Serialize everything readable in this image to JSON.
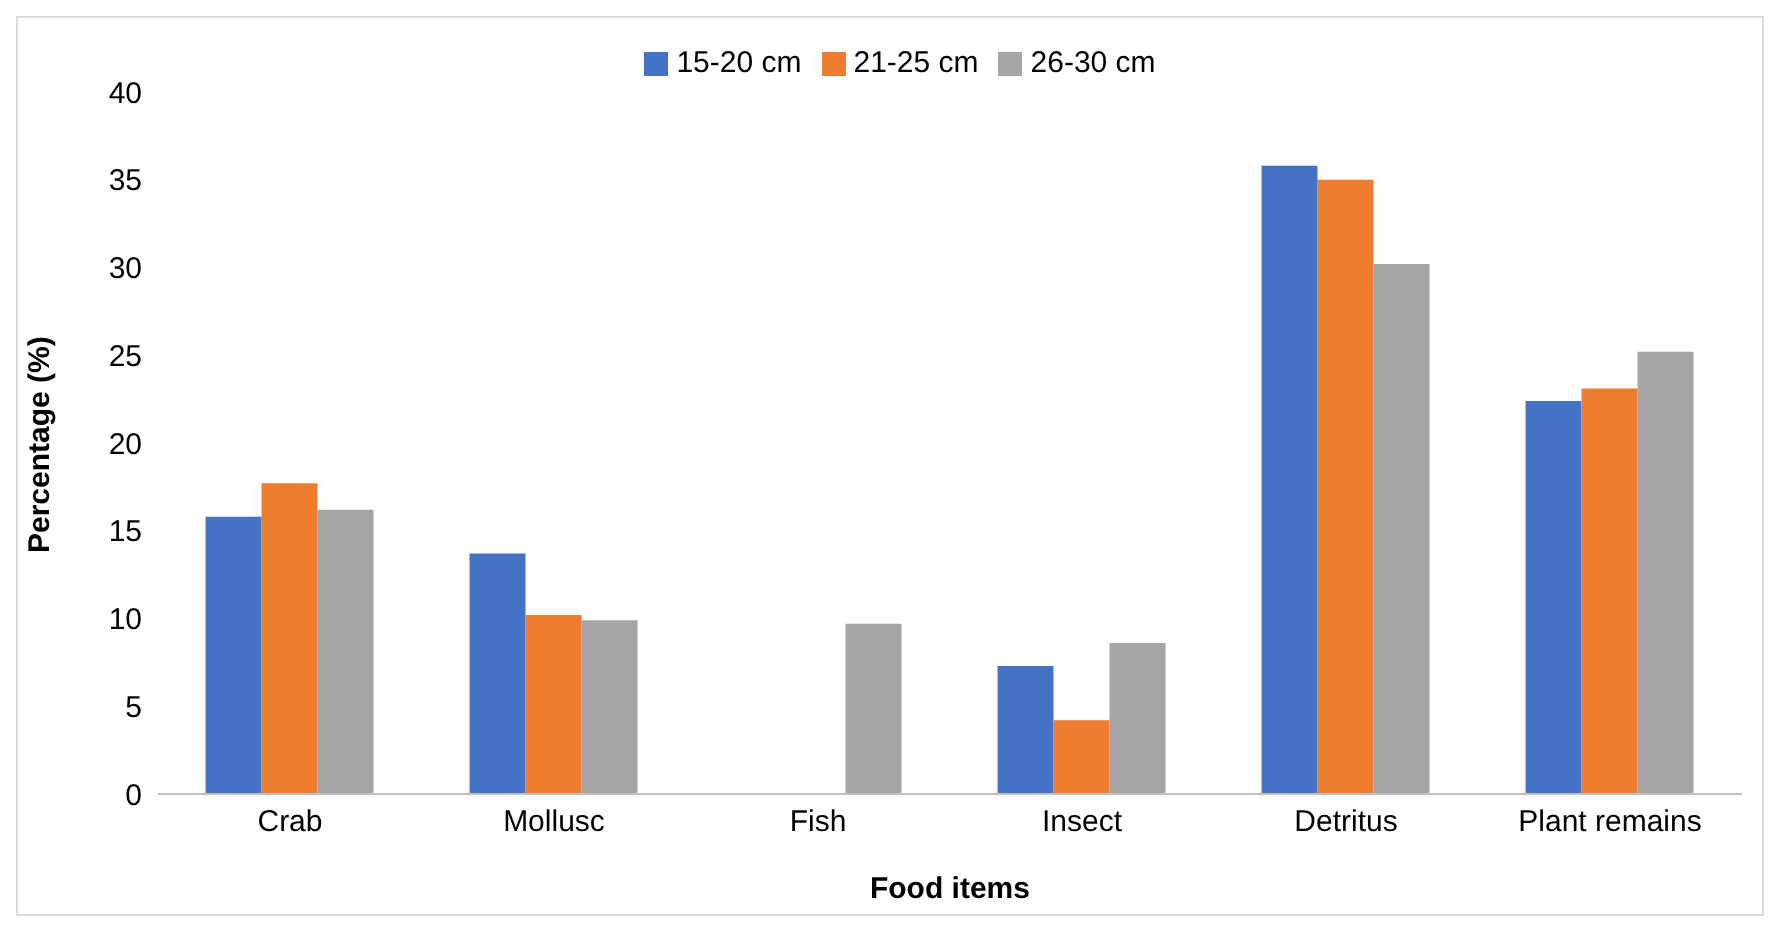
{
  "chart_data": {
    "type": "bar",
    "xlabel": "Food items",
    "ylabel": "Percentage (%)",
    "categories": [
      "Crab",
      "Mollusc",
      "Fish",
      "Insect",
      "Detritus",
      "Plant remains"
    ],
    "series": [
      {
        "name": "15-20 cm",
        "color": "#4472c4",
        "values": [
          15.8,
          13.7,
          0,
          7.3,
          35.8,
          22.4
        ]
      },
      {
        "name": "21-25 cm",
        "color": "#ed7d31",
        "values": [
          17.7,
          10.2,
          0,
          4.2,
          35.0,
          23.1
        ]
      },
      {
        "name": "26-30 cm",
        "color": "#a5a5a5",
        "values": [
          16.2,
          9.9,
          9.7,
          8.6,
          30.2,
          25.2
        ]
      }
    ],
    "ylim": [
      0,
      40
    ],
    "yticks": [
      0,
      5,
      10,
      15,
      20,
      25,
      30,
      35,
      40
    ],
    "legend": "top"
  }
}
